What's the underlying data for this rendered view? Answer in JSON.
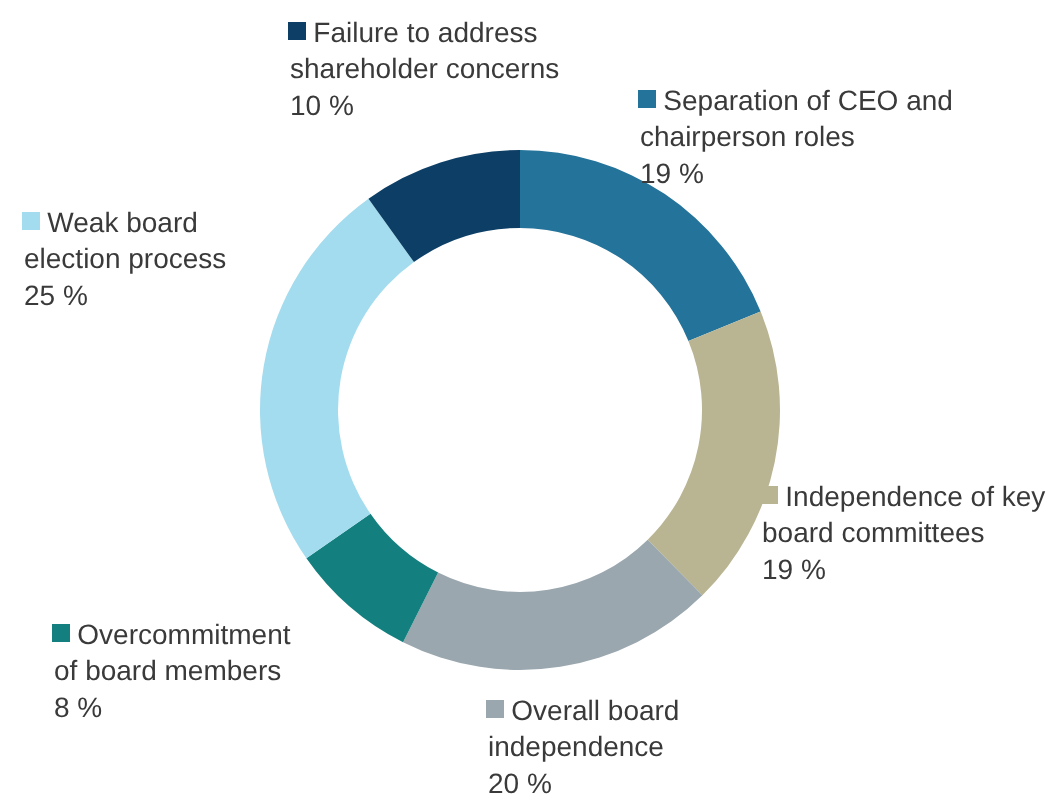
{
  "chart_data": {
    "type": "donut",
    "categories": [
      "Separation of CEO and chairperson roles",
      "Independence of key board committees",
      "Overall board independence",
      "Overcommitment of board members",
      "Weak board election process",
      "Failure to address shareholder concerns"
    ],
    "values": [
      19,
      19,
      20,
      8,
      25,
      10
    ],
    "colors": [
      "#23739a",
      "#b9b592",
      "#9aa7ae",
      "#13807f",
      "#a3dcee",
      "#0d3f66"
    ],
    "value_labels": [
      "19 %",
      "19 %",
      "20 %",
      "8 %",
      "25 %",
      "10 %"
    ],
    "legend": "top"
  }
}
